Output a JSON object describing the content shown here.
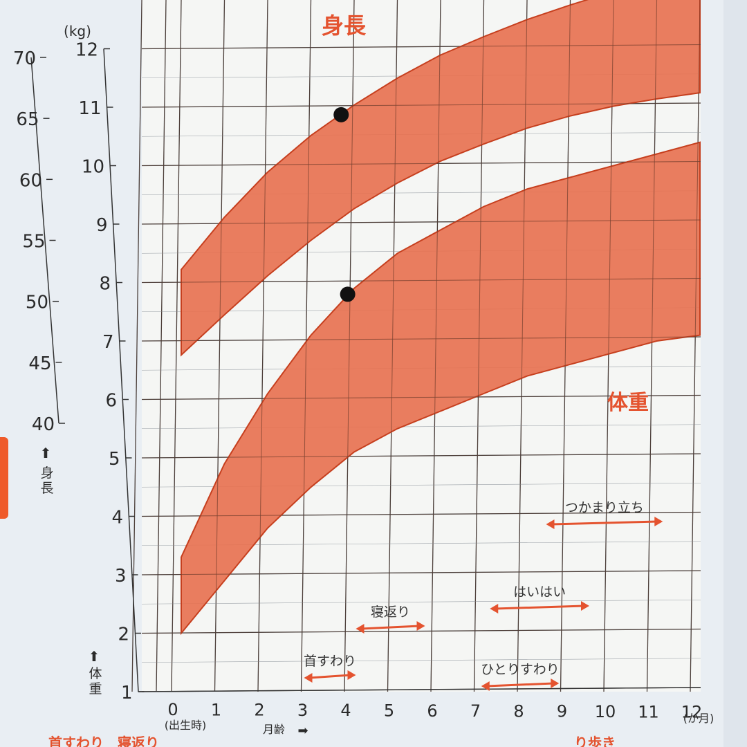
{
  "chart_data": {
    "type": "area",
    "title": "",
    "x_ticks": [
      "0",
      "1",
      "2",
      "3",
      "4",
      "5",
      "6",
      "7",
      "8",
      "9",
      "10",
      "11",
      "12"
    ],
    "x_tick_sub": "(出生時)",
    "x_unit": "(か月)",
    "xlabel": "月齢",
    "xlim": [
      0,
      12
    ],
    "weight_axis": {
      "unit": "(kg)",
      "label": "体重",
      "ticks": [
        1,
        2,
        3,
        4,
        5,
        6,
        7,
        8,
        9,
        10,
        11,
        12
      ],
      "ylim": [
        1,
        12
      ]
    },
    "height_axis": {
      "label": "身長",
      "ticks": [
        40,
        45,
        50,
        55,
        60,
        65,
        70
      ],
      "ylim": [
        40,
        70
      ]
    },
    "grid": true,
    "bands": [
      {
        "name": "身長",
        "x": [
          0,
          1,
          2,
          3,
          4,
          5,
          6,
          7,
          8,
          9,
          10,
          11,
          12
        ],
        "lower": [
          45.6,
          48.9,
          52.1,
          55.0,
          57.6,
          59.7,
          61.5,
          62.9,
          64.2,
          65.2,
          66.0,
          66.6,
          67.1
        ],
        "upper": [
          52.6,
          56.9,
          60.6,
          63.6,
          66.1,
          68.3,
          70.2,
          71.7,
          73.1,
          74.3,
          75.4,
          76.3,
          77.1
        ]
      },
      {
        "name": "体重",
        "x": [
          0,
          1,
          2,
          3,
          4,
          5,
          6,
          7,
          8,
          9,
          10,
          11,
          12
        ],
        "lower": [
          2.0,
          2.9,
          3.8,
          4.5,
          5.1,
          5.5,
          5.8,
          6.1,
          6.4,
          6.6,
          6.8,
          7.0,
          7.1
        ],
        "upper": [
          3.3,
          4.9,
          6.1,
          7.1,
          7.9,
          8.5,
          8.9,
          9.3,
          9.6,
          9.8,
          10.0,
          10.2,
          10.4
        ]
      }
    ],
    "points": [
      {
        "series": "身長",
        "x": 3.7,
        "y": 65.3
      },
      {
        "series": "体重",
        "x": 3.85,
        "y": 7.8
      }
    ],
    "milestones": [
      {
        "label": "首すわり",
        "start": 3.0,
        "end": 4.2
      },
      {
        "label": "寝返り",
        "start": 4.2,
        "end": 5.8
      },
      {
        "label": "ひとりすわり",
        "start": 7.1,
        "end": 8.9
      },
      {
        "label": "はいはい",
        "start": 7.3,
        "end": 9.6
      },
      {
        "label": "つかまり立ち",
        "start": 8.6,
        "end": 11.3
      }
    ],
    "band_color": "#e8704f",
    "band_edge_color": "#c63f1e"
  },
  "footer_text": "首すわり　寝返り　　　　　　　　　　　　　　　　　　　　　　　　　　　　　　り歩き"
}
